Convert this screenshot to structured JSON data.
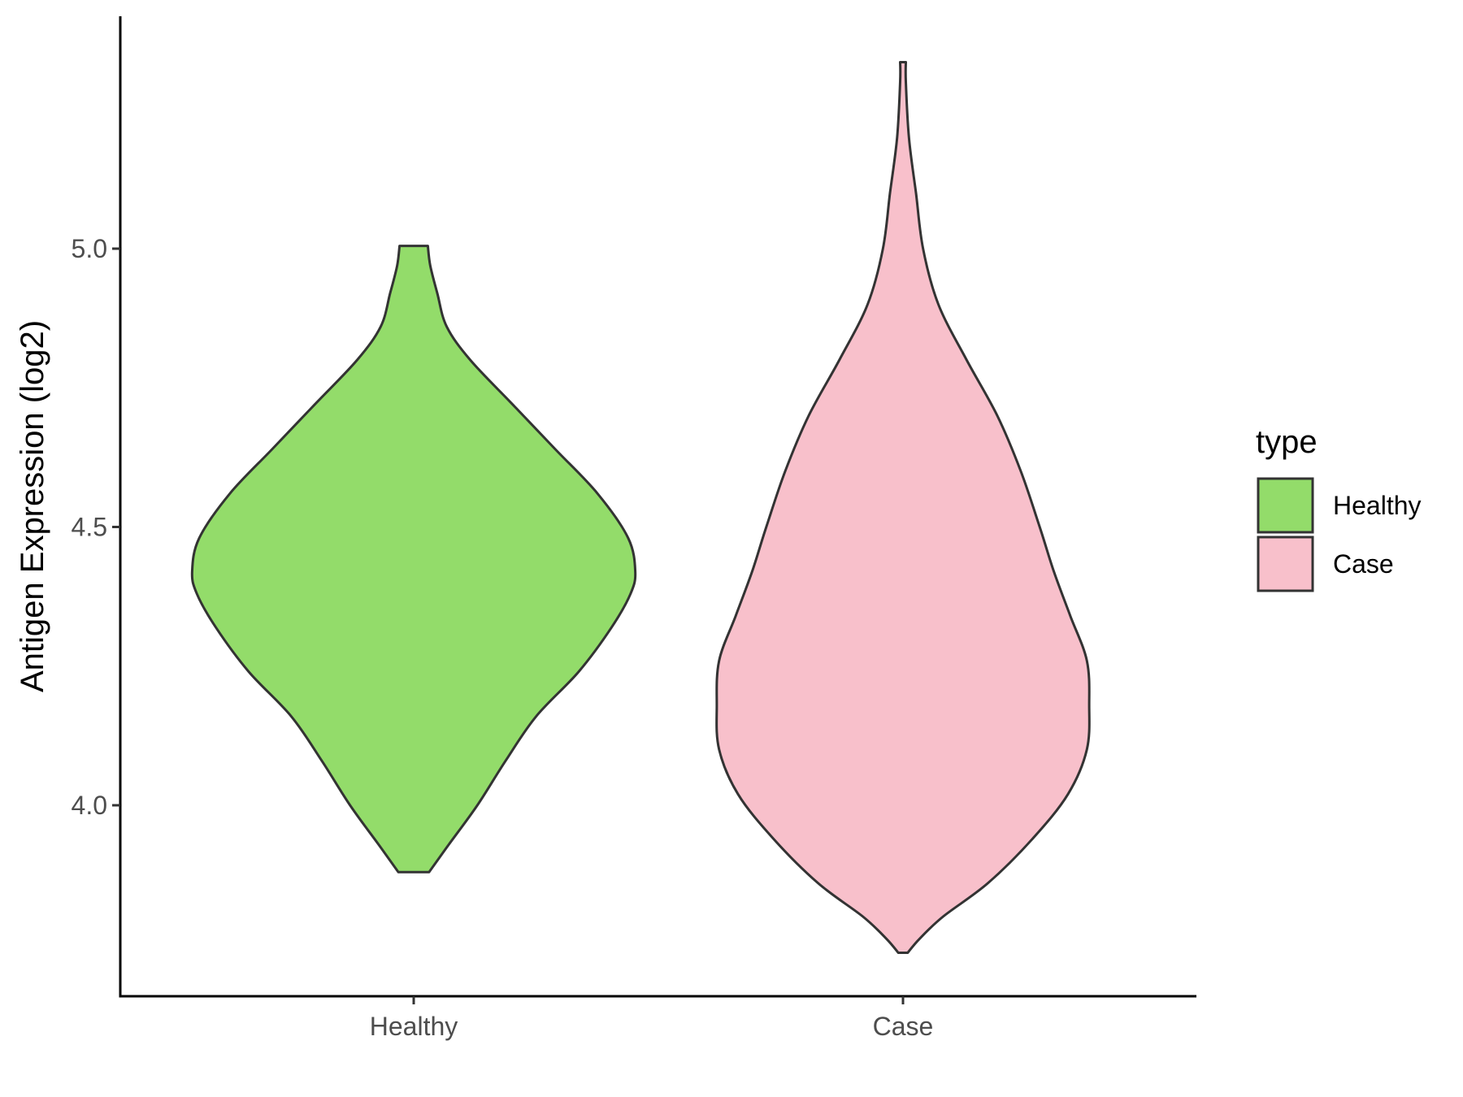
{
  "chart_data": {
    "type": "violin",
    "ylabel": "Antigen Expression (log2)",
    "xlabel": "",
    "categories": [
      "Healthy",
      "Case"
    ],
    "yticks": [
      4.0,
      4.5,
      5.0
    ],
    "ytick_labels": [
      "4.0",
      "4.5",
      "5.0"
    ],
    "ylim": [
      3.68,
      5.42
    ],
    "grid": false,
    "legend": {
      "title": "type",
      "position": "right",
      "entries": [
        {
          "label": "Healthy",
          "color": "#93DC6A"
        },
        {
          "label": "Case",
          "color": "#F8C0CB"
        }
      ]
    },
    "series": [
      {
        "category": "Healthy",
        "color": "#93DC6A",
        "min": 3.88,
        "max": 5.005,
        "density_profile": [
          [
            3.88,
            0.065
          ],
          [
            3.93,
            0.15
          ],
          [
            4.0,
            0.27
          ],
          [
            4.08,
            0.39
          ],
          [
            4.16,
            0.52
          ],
          [
            4.24,
            0.7
          ],
          [
            4.32,
            0.84
          ],
          [
            4.38,
            0.92
          ],
          [
            4.42,
            0.94
          ],
          [
            4.48,
            0.91
          ],
          [
            4.56,
            0.78
          ],
          [
            4.64,
            0.6
          ],
          [
            4.72,
            0.42
          ],
          [
            4.8,
            0.24
          ],
          [
            4.86,
            0.14
          ],
          [
            4.92,
            0.1
          ],
          [
            4.97,
            0.07
          ],
          [
            5.005,
            0.06
          ]
        ]
      },
      {
        "category": "Case",
        "color": "#F8C0CB",
        "min": 3.735,
        "max": 5.335,
        "density_profile": [
          [
            3.735,
            0.02
          ],
          [
            3.76,
            0.07
          ],
          [
            3.8,
            0.17
          ],
          [
            3.86,
            0.36
          ],
          [
            3.94,
            0.55
          ],
          [
            4.02,
            0.7
          ],
          [
            4.1,
            0.78
          ],
          [
            4.18,
            0.79
          ],
          [
            4.26,
            0.78
          ],
          [
            4.34,
            0.71
          ],
          [
            4.42,
            0.64
          ],
          [
            4.5,
            0.58
          ],
          [
            4.6,
            0.5
          ],
          [
            4.7,
            0.4
          ],
          [
            4.8,
            0.27
          ],
          [
            4.9,
            0.15
          ],
          [
            5.0,
            0.085
          ],
          [
            5.1,
            0.055
          ],
          [
            5.2,
            0.025
          ],
          [
            5.3,
            0.012
          ],
          [
            5.335,
            0.012
          ]
        ]
      }
    ]
  }
}
